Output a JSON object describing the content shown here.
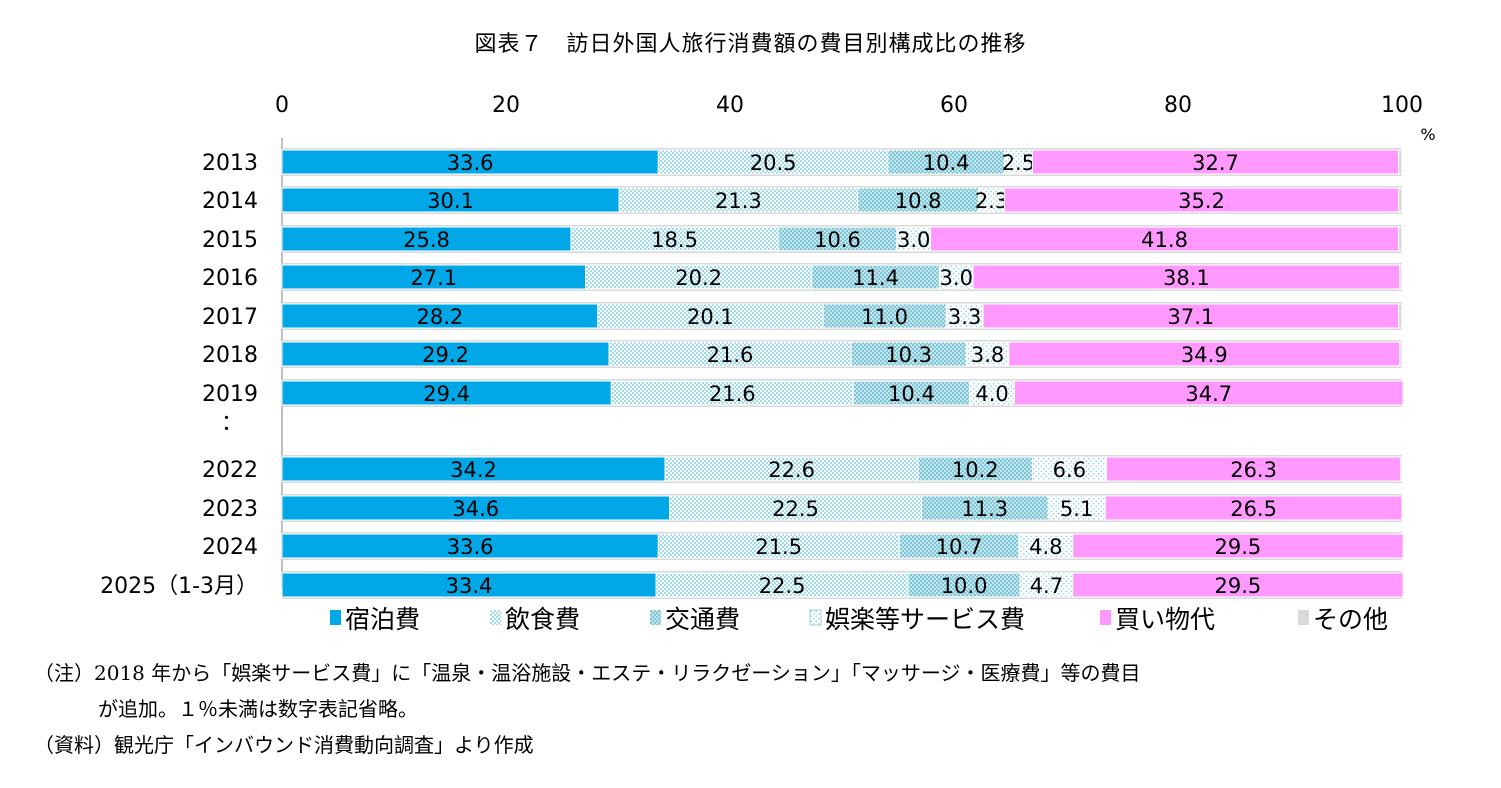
{
  "title": "図表７　訪日外国人旅行消費額の費目別構成比の推移",
  "note_line1": "（注）2018 年から「娯楽サービス費」に「温泉・温浴施設・エステ・リラクゼーション」「マッサージ・医療費」等の費目",
  "note_line2": "が追加。１％未満は数字表記省略。",
  "source": "（資料）観光庁「インバウンド消費動向調査」より作成",
  "colors": {
    "lodging": "#00a8e8",
    "food": "#7fd0e6",
    "transport": "#a8dbe6",
    "entertainment": "#e0f4f8",
    "shopping": "#ff99ff",
    "other": "#d9d9d9"
  },
  "chart_data": {
    "type": "stacked-horizontal-bar",
    "unit": "%",
    "xlim": [
      0,
      100
    ],
    "x_ticks": [
      "0",
      "20",
      "40",
      "60",
      "80",
      "100"
    ],
    "ellipsis": "：",
    "categories": [
      "2013",
      "2014",
      "2015",
      "2016",
      "2017",
      "2018",
      "2019",
      "2022",
      "2023",
      "2024",
      "2025（1-3月）"
    ],
    "series": [
      {
        "key": "lodging",
        "name": "宿泊費",
        "values": [
          33.6,
          30.1,
          25.8,
          27.1,
          28.2,
          29.2,
          29.4,
          34.2,
          34.6,
          33.6,
          33.4
        ]
      },
      {
        "key": "food",
        "name": "飲食費",
        "values": [
          20.5,
          21.3,
          18.5,
          20.2,
          20.1,
          21.6,
          21.6,
          22.6,
          22.5,
          21.5,
          22.5
        ]
      },
      {
        "key": "transport",
        "name": "交通費",
        "values": [
          10.4,
          10.8,
          10.6,
          11.4,
          11.0,
          10.3,
          10.4,
          10.2,
          11.3,
          10.7,
          10.0
        ]
      },
      {
        "key": "entertainment",
        "name": "娯楽等サービス費",
        "values": [
          2.5,
          2.3,
          3.0,
          3.0,
          3.3,
          3.8,
          4.0,
          6.6,
          5.1,
          4.8,
          4.7
        ]
      },
      {
        "key": "shopping",
        "name": "買い物代",
        "values": [
          32.7,
          35.2,
          41.8,
          38.1,
          37.1,
          34.9,
          34.7,
          26.3,
          26.5,
          29.5,
          29.5
        ]
      },
      {
        "key": "other",
        "name": "その他",
        "values": [
          0.3,
          0.3,
          0.3,
          0.2,
          0.3,
          0.2,
          0.1,
          0.1,
          0.0,
          0.0,
          0.0
        ]
      }
    ],
    "legend_position": "bottom"
  }
}
